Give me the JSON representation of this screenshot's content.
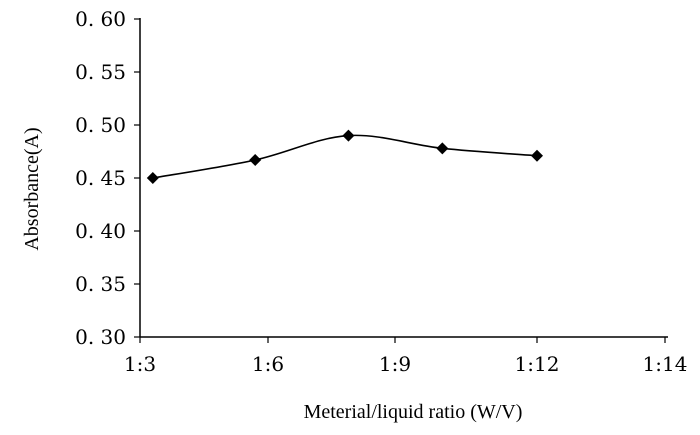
{
  "chart_data": {
    "type": "line",
    "title": "",
    "xlabel": "Meterial/liquid ratio (W/V)",
    "ylabel": "Absorbance(A)",
    "x_tick_labels": [
      "1:3",
      "1:6",
      "1:9",
      "1:12",
      "1:14"
    ],
    "y_tick_labels": [
      "0. 60",
      "0. 55",
      "0. 50",
      "0. 45",
      "0. 40",
      "0. 35",
      "0. 30"
    ],
    "ylim": [
      0.3,
      0.6
    ],
    "ytick_values": [
      0.6,
      0.55,
      0.5,
      0.45,
      0.4,
      0.35,
      0.3
    ],
    "series": [
      {
        "name": "Absorbance",
        "x": [
          3.3,
          5.7,
          7.9,
          10.0,
          12.0
        ],
        "values": [
          0.45,
          0.467,
          0.49,
          0.478,
          0.471
        ]
      }
    ],
    "grid": false,
    "legend": "none"
  }
}
